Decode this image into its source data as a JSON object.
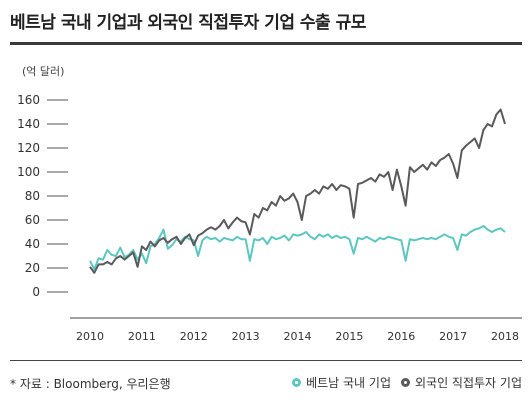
{
  "title": "베트남 국내 기업과 외국인 직접투자 기업 수출 규모",
  "unit": "(억 달러)",
  "source": "* 자료 : Bloomberg, 우리은행",
  "colors": {
    "domestic": "#5cc7c0",
    "fdi": "#5a5a5a",
    "axis": "#333333"
  },
  "chart_data": {
    "type": "line",
    "title": "베트남 국내 기업과 외국인 직접투자 기업 수출 규모",
    "ylabel": "(억 달러)",
    "xlabel": "",
    "ylim": [
      0,
      160
    ],
    "yticks": [
      0,
      20,
      40,
      60,
      80,
      100,
      120,
      140,
      160
    ],
    "xticks": [
      "2010",
      "2011",
      "2012",
      "2013",
      "2014",
      "2015",
      "2016",
      "2017",
      "2018"
    ],
    "legend_position": "bottom-right",
    "grid": false,
    "x": [
      2010.0,
      2010.0833,
      2010.1667,
      2010.25,
      2010.3333,
      2010.4167,
      2010.5,
      2010.5833,
      2010.6667,
      2010.75,
      2010.8333,
      2010.9167,
      2011.0,
      2011.0833,
      2011.1667,
      2011.25,
      2011.3333,
      2011.4167,
      2011.5,
      2011.5833,
      2011.6667,
      2011.75,
      2011.8333,
      2011.9167,
      2012.0,
      2012.0833,
      2012.1667,
      2012.25,
      2012.3333,
      2012.4167,
      2012.5,
      2012.5833,
      2012.6667,
      2012.75,
      2012.8333,
      2012.9167,
      2013.0,
      2013.0833,
      2013.1667,
      2013.25,
      2013.3333,
      2013.4167,
      2013.5,
      2013.5833,
      2013.6667,
      2013.75,
      2013.8333,
      2013.9167,
      2014.0,
      2014.0833,
      2014.1667,
      2014.25,
      2014.3333,
      2014.4167,
      2014.5,
      2014.5833,
      2014.6667,
      2014.75,
      2014.8333,
      2014.9167,
      2015.0,
      2015.0833,
      2015.1667,
      2015.25,
      2015.3333,
      2015.4167,
      2015.5,
      2015.5833,
      2015.6667,
      2015.75,
      2015.8333,
      2015.9167,
      2016.0,
      2016.0833,
      2016.1667,
      2016.25,
      2016.3333,
      2016.4167,
      2016.5,
      2016.5833,
      2016.6667,
      2016.75,
      2016.8333,
      2016.9167,
      2017.0,
      2017.0833,
      2017.1667,
      2017.25,
      2017.3333,
      2017.4167,
      2017.5,
      2017.5833,
      2017.6667,
      2017.75,
      2017.8333,
      2017.9167,
      2018.0
    ],
    "series": [
      {
        "name": "베트남 국내 기업",
        "values": [
          26,
          19,
          28,
          27,
          35,
          31,
          30,
          37,
          29,
          31,
          35,
          27,
          32,
          24,
          38,
          40,
          45,
          52,
          36,
          39,
          44,
          42,
          46,
          44,
          43,
          30,
          43,
          46,
          44,
          45,
          42,
          45,
          44,
          43,
          46,
          44,
          44,
          26,
          44,
          43,
          45,
          40,
          46,
          44,
          45,
          47,
          43,
          48,
          47,
          48,
          50,
          46,
          44,
          48,
          46,
          48,
          45,
          47,
          45,
          46,
          44,
          32,
          45,
          44,
          46,
          44,
          42,
          45,
          44,
          46,
          45,
          44,
          43,
          26,
          44,
          43,
          44,
          45,
          44,
          45,
          44,
          46,
          48,
          46,
          45,
          35,
          48,
          47,
          50,
          52,
          53,
          55,
          52,
          50,
          52,
          53,
          50
        ]
      },
      {
        "name": "외국인 직접투자 기업",
        "values": [
          21,
          16,
          23,
          23,
          25,
          23,
          28,
          30,
          27,
          30,
          33,
          21,
          38,
          35,
          42,
          38,
          43,
          45,
          41,
          44,
          46,
          40,
          45,
          48,
          39,
          47,
          49,
          52,
          54,
          52,
          55,
          60,
          53,
          58,
          62,
          59,
          58,
          48,
          65,
          62,
          70,
          68,
          75,
          72,
          80,
          76,
          78,
          82,
          75,
          60,
          80,
          82,
          85,
          82,
          88,
          86,
          90,
          85,
          89,
          88,
          86,
          62,
          90,
          91,
          93,
          95,
          92,
          98,
          96,
          100,
          85,
          102,
          88,
          72,
          104,
          100,
          103,
          106,
          102,
          108,
          105,
          110,
          112,
          115,
          107,
          95,
          118,
          122,
          125,
          128,
          120,
          135,
          140,
          138,
          148,
          152,
          140
        ]
      }
    ]
  }
}
